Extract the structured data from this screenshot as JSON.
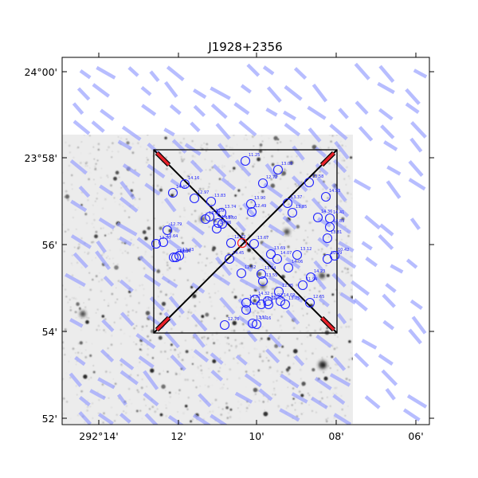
{
  "chart_data": {
    "type": "scatter",
    "title": "J1928+2356",
    "xlabel": "",
    "ylabel": "",
    "x_ticks": [
      "292°14'",
      "12'",
      "10'",
      "08'",
      "06'"
    ],
    "y_ticks": [
      "24°00'",
      "23°58'",
      "56'",
      "54'",
      "52'"
    ],
    "colors": {
      "box": "#000000",
      "marker": "#1f22ff",
      "target": "#ff1f1f",
      "vectors": "#9aa2ff",
      "bar": "#e8222a"
    },
    "stars": [
      {
        "label": "11.25",
        "mag": 11.25
      },
      {
        "label": "13.08",
        "mag": 13.08
      },
      {
        "label": "14.16",
        "mag": 14.16
      },
      {
        "label": "12.72",
        "mag": 12.72
      },
      {
        "label": "14.41",
        "mag": 14.41
      },
      {
        "label": "13.58",
        "mag": 13.58
      },
      {
        "label": "14.33",
        "mag": 14.33
      },
      {
        "label": "12.97",
        "mag": 12.97
      },
      {
        "label": "13.83",
        "mag": 13.83
      },
      {
        "label": "13.90",
        "mag": 13.9
      },
      {
        "label": "13.37",
        "mag": 13.37
      },
      {
        "label": "14.09",
        "mag": 14.09
      },
      {
        "label": "13.74",
        "mag": 13.74
      },
      {
        "label": "12.49",
        "mag": 12.49
      },
      {
        "label": "13.85",
        "mag": 13.85
      },
      {
        "label": "14.36",
        "mag": 14.36
      },
      {
        "label": "14.41",
        "mag": 14.41
      },
      {
        "label": "13.28",
        "mag": 13.28
      },
      {
        "label": "13.50",
        "mag": 13.5
      },
      {
        "label": "14.86",
        "mag": 14.86
      },
      {
        "label": "12.79",
        "mag": 12.79
      },
      {
        "label": "13.64",
        "mag": 13.64
      },
      {
        "label": "12.50",
        "mag": 12.5
      },
      {
        "label": "14.62",
        "mag": 14.62
      },
      {
        "label": "13.89",
        "mag": 13.89
      },
      {
        "label": "13.81",
        "mag": 13.81
      },
      {
        "label": "12.43",
        "mag": 12.43
      },
      {
        "label": "14.04",
        "mag": 14.04
      },
      {
        "label": "12.72",
        "mag": 12.72
      },
      {
        "label": "13.67",
        "mag": 13.67
      },
      {
        "label": "14.45",
        "mag": 14.45
      },
      {
        "label": "13.12",
        "mag": 13.12
      },
      {
        "label": "10.42",
        "mag": 10.42
      },
      {
        "label": "13.69",
        "mag": 13.69
      },
      {
        "label": "14.07",
        "mag": 14.07
      },
      {
        "label": "14.06",
        "mag": 14.06
      },
      {
        "label": "12.52",
        "mag": 12.52
      },
      {
        "label": "10.09",
        "mag": 10.09
      },
      {
        "label": "13.64",
        "mag": 13.64
      },
      {
        "label": "14.23",
        "mag": 14.23
      },
      {
        "label": "12.95",
        "mag": 12.95
      },
      {
        "label": "11.94",
        "mag": 11.94
      },
      {
        "label": "14.02",
        "mag": 14.02
      },
      {
        "label": "14.48",
        "mag": 14.48
      },
      {
        "label": "12.65",
        "mag": 12.65
      },
      {
        "label": "14.85",
        "mag": 14.85
      },
      {
        "label": "13.75",
        "mag": 13.75
      },
      {
        "label": "14.32",
        "mag": 14.32
      },
      {
        "label": "13.51",
        "mag": 13.51
      },
      {
        "label": "14.23",
        "mag": 14.23
      },
      {
        "label": "13.92",
        "mag": 13.92
      },
      {
        "label": "12.76",
        "mag": 12.76
      },
      {
        "label": "14.16",
        "mag": 14.16
      },
      {
        "label": "14.87",
        "mag": 14.87
      },
      {
        "label": "14.01",
        "mag": 14.01
      },
      {
        "label": "13.55",
        "mag": 13.55
      }
    ]
  }
}
